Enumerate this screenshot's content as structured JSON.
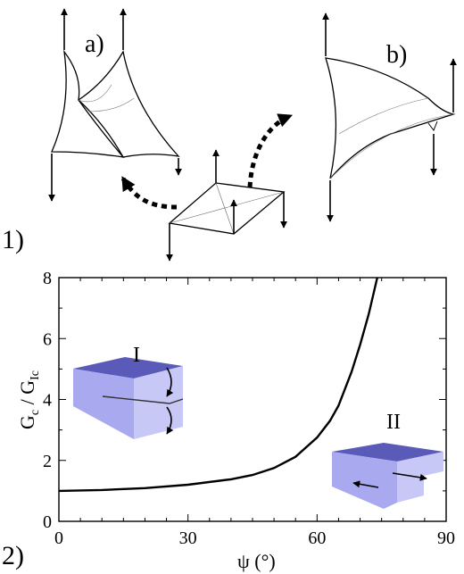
{
  "figure": {
    "panel_labels": [
      "1)",
      "2)"
    ],
    "sub_labels": [
      "a)",
      "b)"
    ],
    "inset_labels": [
      "I",
      "II"
    ]
  },
  "chart_data": {
    "type": "line",
    "title": "",
    "xlabel": "ψ (°)",
    "ylabel": "Gc / GIc",
    "ylabel_parts": {
      "g1": "G",
      "s1": "c",
      "sep": " / ",
      "g2": "G",
      "s2": "Ic"
    },
    "xlim": [
      0,
      90
    ],
    "ylim": [
      0,
      8
    ],
    "xticks": [
      0,
      30,
      60,
      90
    ],
    "yticks": [
      0,
      2,
      4,
      6,
      8
    ],
    "grid": false,
    "series": [
      {
        "x": [
          0,
          10,
          20,
          30,
          40,
          45,
          50,
          55,
          60,
          63,
          65,
          68,
          70,
          72,
          74
        ],
        "values": [
          1.0,
          1.03,
          1.09,
          1.2,
          1.38,
          1.52,
          1.75,
          2.12,
          2.75,
          3.3,
          3.8,
          4.9,
          5.8,
          6.8,
          8.0
        ]
      }
    ],
    "colors": {
      "line": "#000000",
      "block_top": "#5a5ab8",
      "block_front": "#a9a9f0",
      "block_side": "#c8c8f6"
    }
  }
}
